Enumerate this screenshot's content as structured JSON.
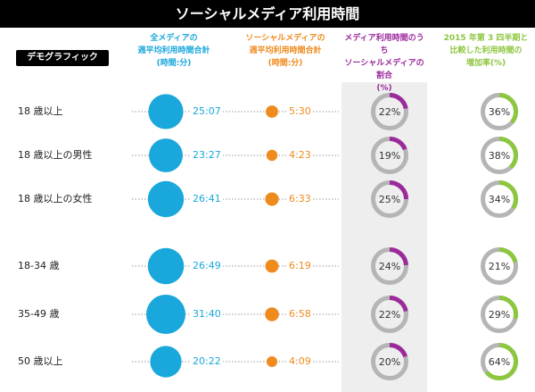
{
  "title": "ソーシャルメディア利用時間",
  "demographic_label": "デモグラフィック",
  "colors": {
    "total": "#1aa7dc",
    "social": "#ef8a1d",
    "share": "#9b2a9b",
    "growth": "#8dc63f",
    "ring_bg": "#b5b5b5"
  },
  "chart_data": {
    "type": "table",
    "columns": [
      "全メディアの\n週平均利用時間合計\n(時間:分)",
      "ソーシャルメディアの\n週平均利用時間合計\n(時間:分)",
      "メディア利用時間のうち\nソーシャルメディアの割合\n(%)",
      "2015 年第 3 四半期と\n比較した利用時間の\n増加率(%)"
    ],
    "rows": [
      {
        "label": "18 歳以上",
        "total": "25:07",
        "social": "5:30",
        "share": "22%",
        "growth": "36%"
      },
      {
        "label": "18 歳以上の男性",
        "total": "23:27",
        "social": "4:23",
        "share": "19%",
        "growth": "38%"
      },
      {
        "label": "18 歳以上の女性",
        "total": "26:41",
        "social": "6:33",
        "share": "25%",
        "growth": "34%"
      },
      {
        "label": "18-34 歳",
        "total": "26:49",
        "social": "6:19",
        "share": "24%",
        "growth": "21%"
      },
      {
        "label": "35-49 歳",
        "total": "31:40",
        "social": "6:58",
        "share": "22%",
        "growth": "29%"
      },
      {
        "label": "50 歳以上",
        "total": "20:22",
        "social": "4:09",
        "share": "20%",
        "growth": "64%"
      }
    ]
  }
}
